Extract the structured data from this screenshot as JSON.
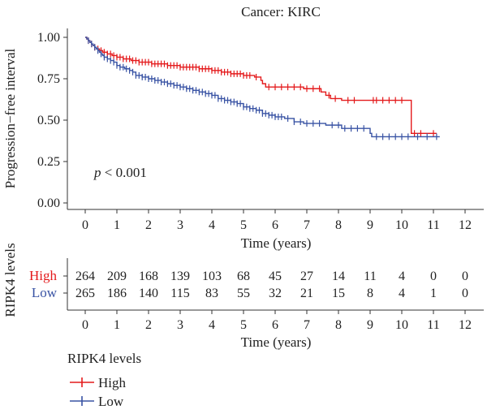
{
  "chart_data": {
    "type": "line",
    "title": "Cancer: KIRC",
    "xlabel": "Time (years)",
    "ylabel": "Progression−free interval",
    "xlim": [
      0,
      12
    ],
    "ylim": [
      0,
      1
    ],
    "x_ticks": [
      "0",
      "1",
      "2",
      "3",
      "4",
      "5",
      "6",
      "7",
      "8",
      "9",
      "10",
      "11",
      "12"
    ],
    "y_ticks": [
      "0.00",
      "0.25",
      "0.50",
      "0.75",
      "1.00"
    ],
    "annotation": {
      "p_italic": "p",
      "rest": " < 0.001"
    },
    "legend": {
      "title": "RIPK4 levels",
      "position": "bottom-left"
    },
    "series": [
      {
        "name": "High",
        "color": "#e41a1c",
        "steps": [
          [
            0,
            1.0
          ],
          [
            0.05,
            0.99
          ],
          [
            0.1,
            0.98
          ],
          [
            0.15,
            0.97
          ],
          [
            0.2,
            0.96
          ],
          [
            0.25,
            0.95
          ],
          [
            0.3,
            0.94
          ],
          [
            0.35,
            0.93
          ],
          [
            0.45,
            0.92
          ],
          [
            0.55,
            0.91
          ],
          [
            0.7,
            0.9
          ],
          [
            0.85,
            0.89
          ],
          [
            1.0,
            0.88
          ],
          [
            1.2,
            0.87
          ],
          [
            1.45,
            0.86
          ],
          [
            1.7,
            0.85
          ],
          [
            2.1,
            0.84
          ],
          [
            2.6,
            0.83
          ],
          [
            3.0,
            0.82
          ],
          [
            3.6,
            0.81
          ],
          [
            4.0,
            0.8
          ],
          [
            4.3,
            0.79
          ],
          [
            4.6,
            0.78
          ],
          [
            5.0,
            0.77
          ],
          [
            5.35,
            0.76
          ],
          [
            5.55,
            0.74
          ],
          [
            5.6,
            0.72
          ],
          [
            5.7,
            0.7
          ],
          [
            6.9,
            0.69
          ],
          [
            7.45,
            0.67
          ],
          [
            7.6,
            0.65
          ],
          [
            7.75,
            0.63
          ],
          [
            8.1,
            0.62
          ],
          [
            10.3,
            0.42
          ],
          [
            11.1,
            0.42
          ]
        ],
        "censors": [
          0.1,
          0.2,
          0.3,
          0.4,
          0.5,
          0.6,
          0.7,
          0.8,
          0.9,
          1.0,
          1.1,
          1.2,
          1.3,
          1.4,
          1.5,
          1.6,
          1.7,
          1.8,
          1.9,
          2.0,
          2.1,
          2.2,
          2.3,
          2.4,
          2.5,
          2.6,
          2.7,
          2.8,
          2.9,
          3.0,
          3.1,
          3.2,
          3.3,
          3.4,
          3.5,
          3.6,
          3.7,
          3.8,
          3.9,
          4.0,
          4.1,
          4.2,
          4.3,
          4.4,
          4.5,
          4.6,
          4.7,
          4.8,
          4.9,
          5.0,
          5.1,
          5.2,
          5.4,
          5.8,
          6.0,
          6.2,
          6.4,
          6.6,
          6.8,
          7.0,
          7.2,
          7.4,
          7.7,
          7.9,
          8.3,
          8.5,
          9.1,
          9.2,
          9.4,
          9.6,
          9.8,
          10.0,
          10.4,
          10.6,
          11.0
        ]
      },
      {
        "name": "Low",
        "color": "#3953a4",
        "steps": [
          [
            0,
            1.0
          ],
          [
            0.05,
            0.99
          ],
          [
            0.1,
            0.98
          ],
          [
            0.15,
            0.97
          ],
          [
            0.2,
            0.96
          ],
          [
            0.25,
            0.95
          ],
          [
            0.3,
            0.94
          ],
          [
            0.35,
            0.93
          ],
          [
            0.4,
            0.92
          ],
          [
            0.45,
            0.91
          ],
          [
            0.5,
            0.9
          ],
          [
            0.55,
            0.89
          ],
          [
            0.6,
            0.88
          ],
          [
            0.7,
            0.87
          ],
          [
            0.8,
            0.86
          ],
          [
            0.9,
            0.85
          ],
          [
            1.0,
            0.83
          ],
          [
            1.1,
            0.82
          ],
          [
            1.25,
            0.81
          ],
          [
            1.4,
            0.8
          ],
          [
            1.5,
            0.79
          ],
          [
            1.6,
            0.77
          ],
          [
            1.8,
            0.76
          ],
          [
            2.0,
            0.75
          ],
          [
            2.2,
            0.74
          ],
          [
            2.4,
            0.73
          ],
          [
            2.6,
            0.72
          ],
          [
            2.8,
            0.71
          ],
          [
            3.0,
            0.7
          ],
          [
            3.2,
            0.69
          ],
          [
            3.4,
            0.68
          ],
          [
            3.6,
            0.67
          ],
          [
            3.8,
            0.66
          ],
          [
            4.0,
            0.65
          ],
          [
            4.2,
            0.63
          ],
          [
            4.4,
            0.62
          ],
          [
            4.6,
            0.61
          ],
          [
            4.8,
            0.6
          ],
          [
            5.0,
            0.58
          ],
          [
            5.2,
            0.57
          ],
          [
            5.4,
            0.56
          ],
          [
            5.6,
            0.54
          ],
          [
            5.8,
            0.53
          ],
          [
            6.0,
            0.52
          ],
          [
            6.3,
            0.51
          ],
          [
            6.6,
            0.49
          ],
          [
            6.9,
            0.48
          ],
          [
            7.6,
            0.47
          ],
          [
            8.1,
            0.45
          ],
          [
            9.0,
            0.42
          ],
          [
            9.05,
            0.4
          ],
          [
            11.2,
            0.4
          ]
        ],
        "censors": [
          0.1,
          0.2,
          0.3,
          0.4,
          0.5,
          0.6,
          0.7,
          0.8,
          0.9,
          1.0,
          1.1,
          1.2,
          1.3,
          1.4,
          1.5,
          1.6,
          1.7,
          1.8,
          1.9,
          2.0,
          2.1,
          2.2,
          2.3,
          2.4,
          2.5,
          2.6,
          2.7,
          2.8,
          2.9,
          3.0,
          3.1,
          3.2,
          3.3,
          3.4,
          3.5,
          3.6,
          3.7,
          3.8,
          3.9,
          4.0,
          4.1,
          4.2,
          4.3,
          4.4,
          4.5,
          4.6,
          4.7,
          4.8,
          4.9,
          5.0,
          5.1,
          5.2,
          5.3,
          5.4,
          5.5,
          5.6,
          5.7,
          5.8,
          5.9,
          6.0,
          6.1,
          6.2,
          6.4,
          6.6,
          6.8,
          7.0,
          7.2,
          7.4,
          7.8,
          8.0,
          8.2,
          8.4,
          8.6,
          8.8,
          9.2,
          9.4,
          9.6,
          9.8,
          10.0,
          10.2,
          10.5,
          10.8,
          11.1
        ]
      }
    ],
    "risk_table": {
      "title": "RIPK4 levels",
      "xlabel": "Time (years)",
      "times": [
        "0",
        "1",
        "2",
        "3",
        "4",
        "5",
        "6",
        "7",
        "8",
        "9",
        "10",
        "11",
        "12"
      ],
      "rows": [
        {
          "name": "High",
          "color": "#e41a1c",
          "counts": [
            "264",
            "209",
            "168",
            "139",
            "103",
            "68",
            "45",
            "27",
            "14",
            "11",
            "4",
            "0",
            "0"
          ]
        },
        {
          "name": "Low",
          "color": "#3953a4",
          "counts": [
            "265",
            "186",
            "140",
            "115",
            "83",
            "55",
            "32",
            "21",
            "15",
            "8",
            "4",
            "1",
            "0"
          ]
        }
      ]
    }
  }
}
